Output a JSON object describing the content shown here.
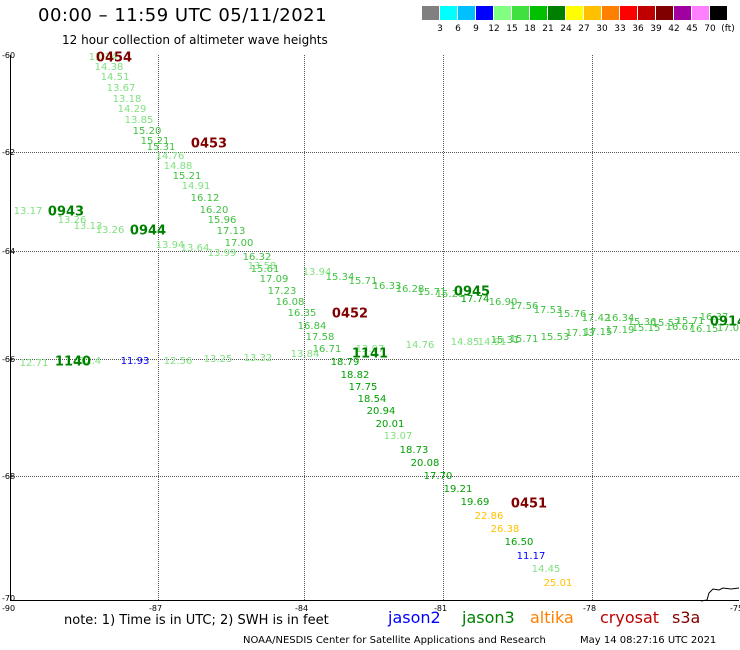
{
  "header": {
    "title": "00:00 – 11:59 UTC 05/11/2021",
    "subtitle": "12 hour collection of altimeter wave heights"
  },
  "color_scale": {
    "colors": [
      "#808080",
      "#00ffff",
      "#00c0ff",
      "#0000ff",
      "#80ff80",
      "#40e040",
      "#00c000",
      "#008000",
      "#ffff00",
      "#ffc000",
      "#ff8000",
      "#ff0000",
      "#c00000",
      "#800000",
      "#a000a0",
      "#ff80ff",
      "#000000"
    ],
    "labels": [
      "3",
      "6",
      "9",
      "12",
      "15",
      "18",
      "21",
      "24",
      "27",
      "30",
      "33",
      "36",
      "39",
      "42",
      "45",
      "70",
      "(ft)"
    ]
  },
  "map": {
    "lon_labels": [
      "-90",
      "-87",
      "-84",
      "-81",
      "-78",
      "-75"
    ],
    "lat_labels": [
      "-60",
      "-62",
      "-64",
      "-66",
      "-68",
      "-70"
    ]
  },
  "passes": [
    {
      "label": "0454",
      "color": "#800000"
    },
    {
      "label": "0453",
      "color": "#800000"
    },
    {
      "label": "0943",
      "color": "#008000"
    },
    {
      "label": "0944",
      "color": "#008000"
    },
    {
      "label": "0945",
      "color": "#008000"
    },
    {
      "label": "0452",
      "color": "#800000"
    },
    {
      "label": "1140",
      "color": "#008000"
    },
    {
      "label": "1141",
      "color": "#008000"
    },
    {
      "label": "0451",
      "color": "#800000"
    },
    {
      "label": "0914",
      "color": "#008000"
    }
  ],
  "points": [
    {
      "v": "13.14",
      "c": "#80e080"
    },
    {
      "v": "14.38",
      "c": "#80e080"
    },
    {
      "v": "14.51",
      "c": "#80e080"
    },
    {
      "v": "13.67",
      "c": "#80e080"
    },
    {
      "v": "13.18",
      "c": "#80e080"
    },
    {
      "v": "14.29",
      "c": "#80e080"
    },
    {
      "v": "13.85",
      "c": "#80e080"
    },
    {
      "v": "15.20",
      "c": "#40c040"
    },
    {
      "v": "15.21",
      "c": "#40c040"
    },
    {
      "v": "15.31",
      "c": "#40c040"
    },
    {
      "v": "14.76",
      "c": "#80e080"
    },
    {
      "v": "14.88",
      "c": "#80e080"
    },
    {
      "v": "15.21",
      "c": "#40c040"
    },
    {
      "v": "14.91",
      "c": "#80e080"
    },
    {
      "v": "16.12",
      "c": "#40c040"
    },
    {
      "v": "16.20",
      "c": "#40c040"
    },
    {
      "v": "15.96",
      "c": "#40c040"
    },
    {
      "v": "17.13",
      "c": "#40c040"
    },
    {
      "v": "17.00",
      "c": "#40c040"
    },
    {
      "v": "16.32",
      "c": "#40c040"
    },
    {
      "v": "15.61",
      "c": "#40c040"
    },
    {
      "v": "17.09",
      "c": "#40c040"
    },
    {
      "v": "17.23",
      "c": "#40c040"
    },
    {
      "v": "16.08",
      "c": "#40c040"
    },
    {
      "v": "16.35",
      "c": "#40c040"
    },
    {
      "v": "16.84",
      "c": "#40c040"
    },
    {
      "v": "17.58",
      "c": "#40c040"
    },
    {
      "v": "16.71",
      "c": "#40c040"
    },
    {
      "v": "18.79",
      "c": "#00a000"
    },
    {
      "v": "18.82",
      "c": "#00a000"
    },
    {
      "v": "17.75",
      "c": "#00a000"
    },
    {
      "v": "18.54",
      "c": "#00a000"
    },
    {
      "v": "20.94",
      "c": "#00a000"
    },
    {
      "v": "20.01",
      "c": "#00a000"
    },
    {
      "v": "13.07",
      "c": "#80e080"
    },
    {
      "v": "18.73",
      "c": "#00a000"
    },
    {
      "v": "20.08",
      "c": "#00a000"
    },
    {
      "v": "17.70",
      "c": "#00a000"
    },
    {
      "v": "19.21",
      "c": "#00a000"
    },
    {
      "v": "19.69",
      "c": "#00a000"
    },
    {
      "v": "22.86",
      "c": "#ffc000"
    },
    {
      "v": "26.38",
      "c": "#ffc000"
    },
    {
      "v": "16.50",
      "c": "#00a000"
    },
    {
      "v": "11.17",
      "c": "#0000ff"
    },
    {
      "v": "14.45",
      "c": "#80e080"
    },
    {
      "v": "25.01",
      "c": "#ffc000"
    },
    {
      "v": "13.17",
      "c": "#80e080"
    },
    {
      "v": "13.26",
      "c": "#80e080"
    },
    {
      "v": "13.13",
      "c": "#80e080"
    },
    {
      "v": "13.26",
      "c": "#80e080"
    },
    {
      "v": "13.94",
      "c": "#80e080"
    },
    {
      "v": "13.64",
      "c": "#80e080"
    },
    {
      "v": "13.99",
      "c": "#80e080"
    },
    {
      "v": "13.58",
      "c": "#80e080"
    },
    {
      "v": "13.94",
      "c": "#80e080"
    },
    {
      "v": "15.34",
      "c": "#40c040"
    },
    {
      "v": "15.71",
      "c": "#40c040"
    },
    {
      "v": "16.33",
      "c": "#40c040"
    },
    {
      "v": "16.28",
      "c": "#40c040"
    },
    {
      "v": "15.71",
      "c": "#40c040"
    },
    {
      "v": "15.21",
      "c": "#40c040"
    },
    {
      "v": "17.74",
      "c": "#00a000"
    },
    {
      "v": "16.90",
      "c": "#40c040"
    },
    {
      "v": "17.56",
      "c": "#40c040"
    },
    {
      "v": "17.53",
      "c": "#40c040"
    },
    {
      "v": "15.76",
      "c": "#40c040"
    },
    {
      "v": "17.42",
      "c": "#40c040"
    },
    {
      "v": "16.34",
      "c": "#40c040"
    },
    {
      "v": "15.36",
      "c": "#40c040"
    },
    {
      "v": "15.57",
      "c": "#40c040"
    },
    {
      "v": "15.71",
      "c": "#40c040"
    },
    {
      "v": "16.37",
      "c": "#40c040"
    },
    {
      "v": "12.71",
      "c": "#80e080"
    },
    {
      "v": "12.4",
      "c": "#80e080"
    },
    {
      "v": "11.93",
      "c": "#0000ff"
    },
    {
      "v": "12.56",
      "c": "#80e080"
    },
    {
      "v": "13.25",
      "c": "#80e080"
    },
    {
      "v": "13.32",
      "c": "#80e080"
    },
    {
      "v": "13.84",
      "c": "#80e080"
    },
    {
      "v": "13.97",
      "c": "#80e080"
    },
    {
      "v": "14.76",
      "c": "#80e080"
    },
    {
      "v": "14.85",
      "c": "#80e080"
    },
    {
      "v": "14.91",
      "c": "#80e080"
    },
    {
      "v": "15.31",
      "c": "#40c040"
    },
    {
      "v": "15.71",
      "c": "#40c040"
    },
    {
      "v": "15.53",
      "c": "#40c040"
    },
    {
      "v": "17.13",
      "c": "#40c040"
    },
    {
      "v": "17.15",
      "c": "#40c040"
    },
    {
      "v": "17.19",
      "c": "#40c040"
    },
    {
      "v": "15.15",
      "c": "#40c040"
    },
    {
      "v": "16.67",
      "c": "#40c040"
    },
    {
      "v": "16.15",
      "c": "#40c040"
    },
    {
      "v": "17.0",
      "c": "#40c040"
    }
  ],
  "footer": {
    "note": "note: 1) Time is in UTC; 2) SWH is in feet",
    "satellites": [
      {
        "name": "jason2",
        "color": "#0000ff"
      },
      {
        "name": "jason3",
        "color": "#008000"
      },
      {
        "name": "altika",
        "color": "#ff8000"
      },
      {
        "name": "cryosat",
        "color": "#c00000"
      },
      {
        "name": "s3a",
        "color": "#800000"
      }
    ],
    "credit": "NOAA/NESDIS Center for Satellite Applications and Research",
    "timestamp": "May 14 08:27:16 UTC 2021"
  }
}
